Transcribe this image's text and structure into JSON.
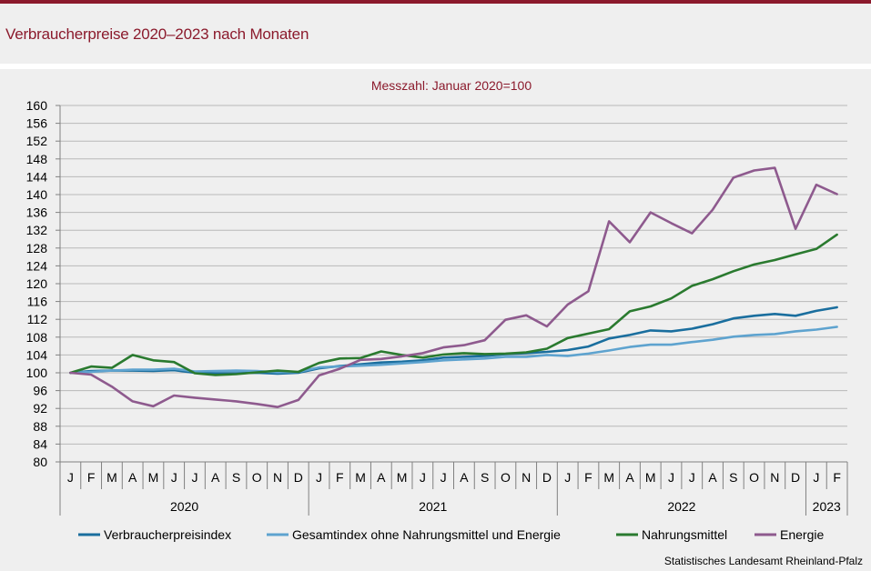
{
  "header": {
    "title": "Verbraucherpreise 2020–2023 nach Monaten"
  },
  "source": "Statistisches Landesamt Rheinland-Pfalz",
  "chart_data": {
    "type": "line",
    "title": "Verbraucherpreise 2020–2023 nach Monaten",
    "subtitle": "Messzahl: Januar 2020=100",
    "xlabel": "",
    "ylabel": "",
    "ylim": [
      80,
      160
    ],
    "yticks": [
      80,
      84,
      88,
      92,
      96,
      100,
      104,
      108,
      112,
      116,
      120,
      124,
      128,
      132,
      136,
      140,
      144,
      148,
      152,
      156,
      160
    ],
    "grid": true,
    "categories": [
      "J",
      "F",
      "M",
      "A",
      "M",
      "J",
      "J",
      "A",
      "S",
      "O",
      "N",
      "D",
      "J",
      "F",
      "M",
      "A",
      "M",
      "J",
      "J",
      "A",
      "S",
      "O",
      "N",
      "D",
      "J",
      "F",
      "M",
      "A",
      "M",
      "J",
      "J",
      "A",
      "S",
      "O",
      "N",
      "D",
      "J",
      "F"
    ],
    "year_groups": [
      {
        "label": "2020",
        "start": 0,
        "count": 12
      },
      {
        "label": "2021",
        "start": 12,
        "count": 12
      },
      {
        "label": "2022",
        "start": 24,
        "count": 12
      },
      {
        "label": "2023",
        "start": 36,
        "count": 2
      }
    ],
    "legend_position": "bottom",
    "series": [
      {
        "name": "Verbraucherpreisindex",
        "color": "#1a6e9e",
        "values": [
          100.0,
          100.4,
          100.5,
          100.5,
          100.4,
          100.6,
          100.0,
          99.9,
          99.9,
          100.0,
          99.8,
          100.0,
          101.0,
          101.5,
          101.9,
          102.3,
          102.5,
          102.8,
          103.4,
          103.6,
          103.8,
          104.2,
          104.4,
          104.7,
          105.1,
          105.9,
          107.7,
          108.5,
          109.5,
          109.3,
          109.9,
          110.9,
          112.2,
          112.8,
          113.2,
          112.8,
          113.9,
          114.7
        ]
      },
      {
        "name": "Gesamtindex ohne Nahrungsmittel und Energie",
        "color": "#5ea3cf",
        "values": [
          100.0,
          100.2,
          100.5,
          100.7,
          100.7,
          100.9,
          100.3,
          100.4,
          100.5,
          100.4,
          100.1,
          100.2,
          101.2,
          101.4,
          101.6,
          101.8,
          102.1,
          102.4,
          102.8,
          103.0,
          103.2,
          103.6,
          103.6,
          104.0,
          103.8,
          104.3,
          105.0,
          105.8,
          106.3,
          106.3,
          106.9,
          107.4,
          108.1,
          108.5,
          108.7,
          109.3,
          109.7,
          110.3
        ]
      },
      {
        "name": "Nahrungsmittel",
        "color": "#2a7a2f",
        "values": [
          100.0,
          101.4,
          101.1,
          104.0,
          102.8,
          102.4,
          99.9,
          99.5,
          99.7,
          100.1,
          100.5,
          100.2,
          102.2,
          103.2,
          103.3,
          104.8,
          104.0,
          103.4,
          104.1,
          104.4,
          104.2,
          104.3,
          104.6,
          105.4,
          107.8,
          108.8,
          109.8,
          113.8,
          114.9,
          116.7,
          119.5,
          121.0,
          122.8,
          124.3,
          125.3,
          126.6,
          127.8,
          131.0
        ]
      },
      {
        "name": "Energie",
        "color": "#8e5a8e",
        "values": [
          100.0,
          99.6,
          96.9,
          93.6,
          92.5,
          94.9,
          94.4,
          94.0,
          93.6,
          93.0,
          92.3,
          93.9,
          99.4,
          100.9,
          102.9,
          103.1,
          103.7,
          104.4,
          105.7,
          106.2,
          107.3,
          111.9,
          112.9,
          110.4,
          115.3,
          118.3,
          134.0,
          129.3,
          136.0,
          133.6,
          131.3,
          136.6,
          143.8,
          145.4,
          146.0,
          132.3,
          142.2,
          140.1
        ]
      }
    ]
  }
}
